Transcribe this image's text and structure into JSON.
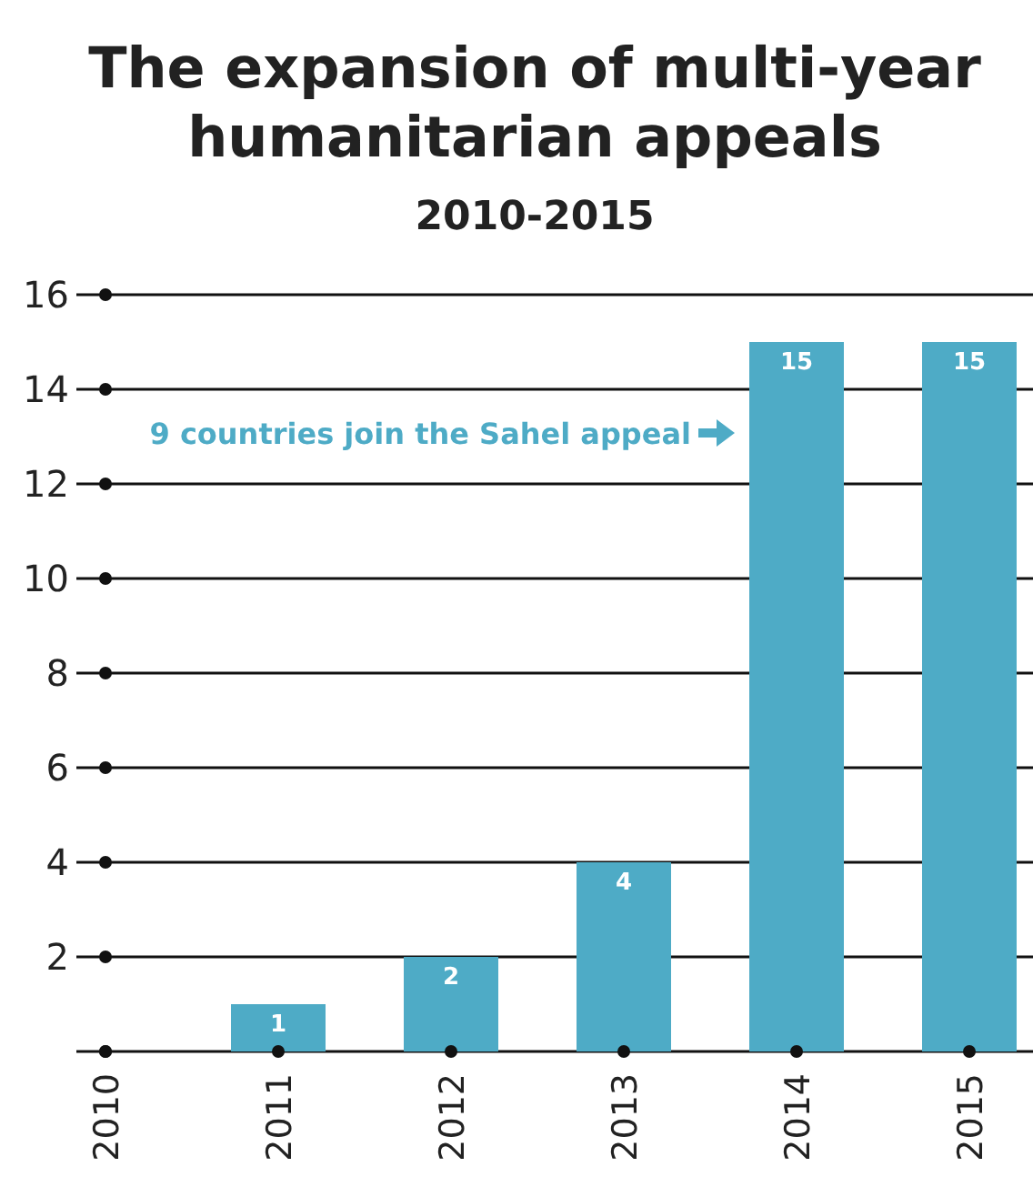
{
  "chart_data": {
    "type": "bar",
    "title": "The expansion of multi-year humanitarian appeals",
    "subtitle": "2010-2015",
    "categories": [
      "2010",
      "2011",
      "2012",
      "2013",
      "2014",
      "2015"
    ],
    "values": [
      0,
      1,
      2,
      4,
      15,
      15
    ],
    "value_labels": [
      null,
      "1",
      "2",
      "4",
      "15",
      "15"
    ],
    "color": "#4eabc6",
    "ylim": [
      0,
      16
    ],
    "yticks": [
      {
        "value": 0,
        "label": null
      },
      2,
      4,
      6,
      8,
      10,
      12,
      14,
      16
    ],
    "grid": "y",
    "annotations": [
      "9 countries join the Sahel appeal"
    ]
  }
}
